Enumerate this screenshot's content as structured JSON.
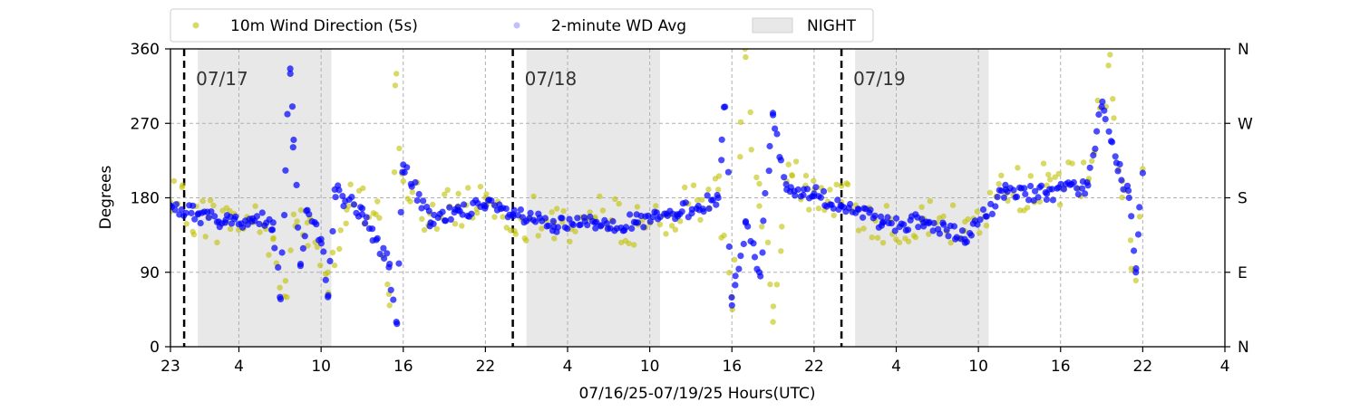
{
  "chart_data": {
    "type": "scatter",
    "xlabel": "07/16/25-07/19/25  Hours(UTC)",
    "ylabel": "Degrees",
    "ylim": [
      0,
      360
    ],
    "xlim": [
      "2025-07-16T23:00",
      "2025-07-20T04:00"
    ],
    "grid": true,
    "legend_placement": "top-left",
    "x_ticks": [
      {
        "x": "2025-07-16T23:00",
        "label": "23"
      },
      {
        "x": "2025-07-17T04:00",
        "label": "4"
      },
      {
        "x": "2025-07-17T10:00",
        "label": "10"
      },
      {
        "x": "2025-07-17T16:00",
        "label": "16"
      },
      {
        "x": "2025-07-17T22:00",
        "label": "22"
      },
      {
        "x": "2025-07-18T04:00",
        "label": "4"
      },
      {
        "x": "2025-07-18T10:00",
        "label": "10"
      },
      {
        "x": "2025-07-18T16:00",
        "label": "16"
      },
      {
        "x": "2025-07-18T22:00",
        "label": "22"
      },
      {
        "x": "2025-07-19T04:00",
        "label": "4"
      },
      {
        "x": "2025-07-19T10:00",
        "label": "10"
      },
      {
        "x": "2025-07-19T16:00",
        "label": "16"
      },
      {
        "x": "2025-07-19T22:00",
        "label": "22"
      },
      {
        "x": "2025-07-20T04:00",
        "label": "4"
      }
    ],
    "y_ticks": [
      0,
      90,
      180,
      270,
      360
    ],
    "y_right_labels": [
      {
        "y": 0,
        "label": "N"
      },
      {
        "y": 90,
        "label": "E"
      },
      {
        "y": 180,
        "label": "S"
      },
      {
        "y": 270,
        "label": "W"
      },
      {
        "y": 360,
        "label": "N"
      }
    ],
    "day_markers": [
      {
        "x": "2025-07-17T00:00",
        "label": "07/17"
      },
      {
        "x": "2025-07-18T00:00",
        "label": "07/18"
      },
      {
        "x": "2025-07-19T00:00",
        "label": "07/19"
      }
    ],
    "night_periods": [
      {
        "start": "2025-07-17T01:00",
        "end": "2025-07-17T10:45"
      },
      {
        "start": "2025-07-18T01:00",
        "end": "2025-07-18T10:45"
      },
      {
        "start": "2025-07-19T01:00",
        "end": "2025-07-19T10:45"
      }
    ],
    "series": [
      {
        "name": "10m Wind Direction (5s)",
        "color": "#bfbf00",
        "points": [
          [
            "2025-07-16T23:00",
            175
          ],
          [
            "2025-07-17T01:00",
            160
          ],
          [
            "2025-07-17T03:00",
            150
          ],
          [
            "2025-07-17T05:00",
            155
          ],
          [
            "2025-07-17T06:30",
            130
          ],
          [
            "2025-07-17T07:30",
            60
          ],
          [
            "2025-07-17T08:00",
            160
          ],
          [
            "2025-07-17T09:00",
            150
          ],
          [
            "2025-07-17T10:30",
            90
          ],
          [
            "2025-07-17T12:00",
            170
          ],
          [
            "2025-07-17T14:00",
            160
          ],
          [
            "2025-07-17T15:00",
            50
          ],
          [
            "2025-07-17T15:30",
            330
          ],
          [
            "2025-07-17T16:00",
            200
          ],
          [
            "2025-07-17T18:00",
            150
          ],
          [
            "2025-07-17T20:00",
            170
          ],
          [
            "2025-07-17T22:00",
            180
          ],
          [
            "2025-07-18T00:00",
            160
          ],
          [
            "2025-07-18T03:00",
            150
          ],
          [
            "2025-07-18T06:00",
            155
          ],
          [
            "2025-07-18T09:00",
            150
          ],
          [
            "2025-07-18T12:00",
            160
          ],
          [
            "2025-07-18T15:00",
            190
          ],
          [
            "2025-07-18T16:00",
            60
          ],
          [
            "2025-07-18T17:00",
            350
          ],
          [
            "2025-07-18T18:00",
            170
          ],
          [
            "2025-07-18T19:00",
            30
          ],
          [
            "2025-07-18T20:00",
            200
          ],
          [
            "2025-07-18T22:00",
            190
          ],
          [
            "2025-07-19T00:00",
            175
          ],
          [
            "2025-07-19T03:00",
            150
          ],
          [
            "2025-07-19T06:00",
            155
          ],
          [
            "2025-07-19T09:00",
            140
          ],
          [
            "2025-07-19T12:00",
            190
          ],
          [
            "2025-07-19T15:00",
            195
          ],
          [
            "2025-07-19T18:00",
            200
          ],
          [
            "2025-07-19T19:30",
            340
          ],
          [
            "2025-07-19T20:30",
            200
          ],
          [
            "2025-07-19T21:30",
            80
          ],
          [
            "2025-07-19T22:00",
            215
          ]
        ]
      },
      {
        "name": "2-minute WD Avg",
        "color": "#0000ff",
        "points": [
          [
            "2025-07-16T23:00",
            170
          ],
          [
            "2025-07-17T01:00",
            160
          ],
          [
            "2025-07-17T03:00",
            150
          ],
          [
            "2025-07-17T05:00",
            155
          ],
          [
            "2025-07-17T06:30",
            150
          ],
          [
            "2025-07-17T07:00",
            60
          ],
          [
            "2025-07-17T07:45",
            330
          ],
          [
            "2025-07-17T08:00",
            250
          ],
          [
            "2025-07-17T08:30",
            100
          ],
          [
            "2025-07-17T09:00",
            165
          ],
          [
            "2025-07-17T10:00",
            130
          ],
          [
            "2025-07-17T10:30",
            60
          ],
          [
            "2025-07-17T11:00",
            190
          ],
          [
            "2025-07-17T13:00",
            160
          ],
          [
            "2025-07-17T15:00",
            100
          ],
          [
            "2025-07-17T15:30",
            30
          ],
          [
            "2025-07-17T16:00",
            220
          ],
          [
            "2025-07-17T18:00",
            150
          ],
          [
            "2025-07-17T20:00",
            165
          ],
          [
            "2025-07-17T22:00",
            170
          ],
          [
            "2025-07-18T00:00",
            160
          ],
          [
            "2025-07-18T03:00",
            145
          ],
          [
            "2025-07-18T06:00",
            150
          ],
          [
            "2025-07-18T09:00",
            150
          ],
          [
            "2025-07-18T12:00",
            160
          ],
          [
            "2025-07-18T15:00",
            180
          ],
          [
            "2025-07-18T15:30",
            290
          ],
          [
            "2025-07-18T16:00",
            50
          ],
          [
            "2025-07-18T17:00",
            150
          ],
          [
            "2025-07-18T18:00",
            90
          ],
          [
            "2025-07-18T19:00",
            280
          ],
          [
            "2025-07-18T20:00",
            190
          ],
          [
            "2025-07-18T22:00",
            185
          ],
          [
            "2025-07-19T00:00",
            170
          ],
          [
            "2025-07-19T03:00",
            150
          ],
          [
            "2025-07-19T06:00",
            150
          ],
          [
            "2025-07-19T09:00",
            130
          ],
          [
            "2025-07-19T12:00",
            190
          ],
          [
            "2025-07-19T15:00",
            185
          ],
          [
            "2025-07-19T18:00",
            195
          ],
          [
            "2025-07-19T19:00",
            290
          ],
          [
            "2025-07-19T20:00",
            230
          ],
          [
            "2025-07-19T21:00",
            180
          ],
          [
            "2025-07-19T21:30",
            90
          ],
          [
            "2025-07-19T22:00",
            210
          ]
        ]
      }
    ],
    "legend": [
      {
        "label": "10m Wind Direction (5s)",
        "kind": "marker",
        "color": "#bfbf00"
      },
      {
        "label": "2-minute WD Avg",
        "kind": "marker",
        "color": "#0000ff"
      },
      {
        "label": "NIGHT",
        "kind": "patch",
        "color": "#e8e8e8"
      }
    ]
  }
}
